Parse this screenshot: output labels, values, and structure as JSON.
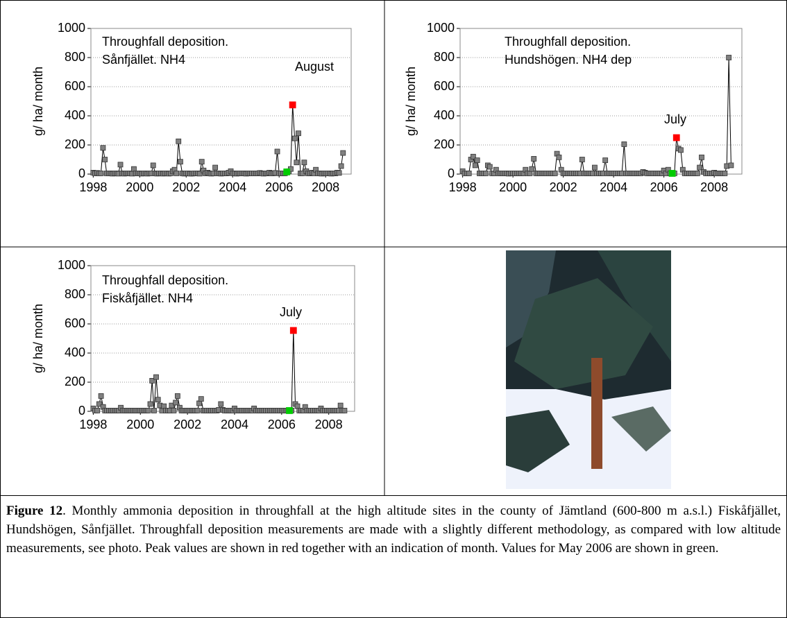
{
  "chart_data": [
    {
      "type": "line",
      "title": [
        "Throughfall deposition.",
        "Sånfjället. NH4"
      ],
      "y_label": "g/ ha/ month",
      "x": [
        1998,
        1998.08,
        1998.17,
        1998.25,
        1998.33,
        1998.42,
        1998.5,
        1998.58,
        1998.67,
        1998.75,
        1998.83,
        1998.92,
        1999,
        1999.08,
        1999.17,
        1999.25,
        1999.33,
        1999.42,
        1999.5,
        1999.58,
        1999.67,
        1999.75,
        1999.83,
        1999.92,
        2000,
        2000.08,
        2000.17,
        2000.25,
        2000.33,
        2000.42,
        2000.5,
        2000.58,
        2000.67,
        2000.75,
        2000.83,
        2000.92,
        2001,
        2001.08,
        2001.17,
        2001.25,
        2001.33,
        2001.42,
        2001.5,
        2001.58,
        2001.67,
        2001.75,
        2001.83,
        2001.92,
        2002,
        2002.08,
        2002.17,
        2002.25,
        2002.33,
        2002.42,
        2002.5,
        2002.58,
        2002.67,
        2002.75,
        2002.83,
        2002.92,
        2003,
        2003.08,
        2003.17,
        2003.25,
        2003.33,
        2003.42,
        2003.5,
        2003.58,
        2003.67,
        2003.75,
        2003.83,
        2003.92,
        2004,
        2004.08,
        2004.17,
        2004.25,
        2004.33,
        2004.42,
        2004.5,
        2004.58,
        2004.67,
        2004.75,
        2004.83,
        2004.92,
        2005,
        2005.08,
        2005.17,
        2005.25,
        2005.33,
        2005.42,
        2005.5,
        2005.58,
        2005.67,
        2005.75,
        2005.83,
        2005.92,
        2006,
        2006.08,
        2006.17,
        2006.25,
        2006.33,
        2006.42,
        2006.5,
        2006.58,
        2006.67,
        2006.75,
        2006.83,
        2006.92,
        2007,
        2007.08,
        2007.17,
        2007.25,
        2007.33,
        2007.42,
        2007.5,
        2007.58,
        2007.67,
        2007.75,
        2007.83,
        2007.92,
        2008,
        2008.08,
        2008.17,
        2008.25,
        2008.33,
        2008.42,
        2008.5,
        2008.58,
        2008.67,
        2008.75
      ],
      "series": [
        {
          "color": "#808080",
          "line_color": "#000000",
          "point_colors": [
            {
              "index": 100,
              "color": "#00cc00"
            },
            {
              "index": 103,
              "color": "#ff0000"
            }
          ],
          "values": [
            10,
            5,
            8,
            5,
            5,
            180,
            100,
            5,
            5,
            5,
            3,
            5,
            5,
            3,
            65,
            5,
            3,
            5,
            5,
            5,
            3,
            35,
            5,
            5,
            5,
            3,
            5,
            5,
            3,
            5,
            5,
            60,
            5,
            3,
            5,
            5,
            3,
            5,
            5,
            3,
            5,
            20,
            30,
            5,
            225,
            85,
            5,
            3,
            5,
            5,
            3,
            3,
            5,
            5,
            5,
            3,
            85,
            25,
            5,
            10,
            5,
            3,
            5,
            45,
            5,
            5,
            3,
            5,
            5,
            5,
            10,
            20,
            5,
            5,
            3,
            5,
            5,
            5,
            5,
            3,
            5,
            5,
            5,
            5,
            5,
            5,
            8,
            5,
            3,
            5,
            5,
            10,
            5,
            5,
            8,
            155,
            5,
            5,
            5,
            5,
            15,
            20,
            35,
            475,
            245,
            80,
            280,
            5,
            5,
            80,
            20,
            5,
            5,
            10,
            5,
            30,
            5,
            5,
            3,
            5,
            5,
            5,
            5,
            3,
            5,
            5,
            10,
            8,
            55,
            145
          ]
        }
      ],
      "annotations": [
        {
          "text": "August"
        }
      ],
      "xlim": [
        1997.9,
        2009.1
      ],
      "xticks": [
        1998,
        2000,
        2002,
        2004,
        2006,
        2008
      ],
      "ylim": [
        0,
        1000
      ],
      "yticks": [
        0,
        200,
        400,
        600,
        800,
        1000
      ],
      "grid": true
    },
    {
      "type": "line",
      "title": [
        "Throughfall deposition.",
        "Hundshögen. NH4 dep"
      ],
      "y_label": "g/ ha/ month",
      "x": [
        1998,
        1998.08,
        1998.17,
        1998.25,
        1998.33,
        1998.42,
        1998.5,
        1998.58,
        1998.67,
        1998.75,
        1998.83,
        1998.92,
        1999,
        1999.08,
        1999.17,
        1999.25,
        1999.33,
        1999.42,
        1999.5,
        1999.58,
        1999.67,
        1999.75,
        1999.83,
        1999.92,
        2000,
        2000.08,
        2000.17,
        2000.25,
        2000.33,
        2000.42,
        2000.5,
        2000.58,
        2000.67,
        2000.75,
        2000.83,
        2000.92,
        2001,
        2001.08,
        2001.17,
        2001.25,
        2001.33,
        2001.42,
        2001.5,
        2001.58,
        2001.67,
        2001.75,
        2001.83,
        2001.92,
        2002,
        2002.08,
        2002.17,
        2002.25,
        2002.33,
        2002.42,
        2002.5,
        2002.58,
        2002.67,
        2002.75,
        2002.83,
        2002.92,
        2003,
        2003.08,
        2003.17,
        2003.25,
        2003.33,
        2003.42,
        2003.5,
        2003.58,
        2003.67,
        2003.75,
        2003.83,
        2003.92,
        2004,
        2004.08,
        2004.17,
        2004.25,
        2004.33,
        2004.42,
        2004.5,
        2004.58,
        2004.67,
        2004.75,
        2004.83,
        2004.92,
        2005,
        2005.08,
        2005.17,
        2005.25,
        2005.33,
        2005.42,
        2005.5,
        2005.58,
        2005.67,
        2005.75,
        2005.83,
        2005.92,
        2006,
        2006.08,
        2006.17,
        2006.25,
        2006.33,
        2006.42,
        2006.5,
        2006.58,
        2006.67,
        2006.75,
        2006.83,
        2006.92,
        2007,
        2007.08,
        2007.17,
        2007.25,
        2007.33,
        2007.42,
        2007.5,
        2007.58,
        2007.67,
        2007.75,
        2007.83,
        2007.92,
        2008,
        2008.08,
        2008.17,
        2008.25,
        2008.33,
        2008.42,
        2008.5,
        2008.58,
        2008.67
      ],
      "series": [
        {
          "color": "#808080",
          "line_color": "#000000",
          "point_colors": [
            {
              "index": 100,
              "color": "#00cc00"
            },
            {
              "index": 102,
              "color": "#ff0000"
            }
          ],
          "values": [
            20,
            5,
            5,
            5,
            100,
            120,
            60,
            95,
            5,
            5,
            5,
            5,
            60,
            50,
            5,
            5,
            30,
            5,
            5,
            5,
            5,
            5,
            3,
            5,
            5,
            5,
            5,
            5,
            5,
            5,
            30,
            5,
            5,
            35,
            105,
            5,
            5,
            5,
            5,
            5,
            5,
            5,
            5,
            5,
            5,
            140,
            115,
            30,
            5,
            5,
            5,
            5,
            5,
            5,
            5,
            5,
            5,
            100,
            5,
            5,
            5,
            5,
            5,
            45,
            5,
            5,
            5,
            5,
            95,
            5,
            5,
            5,
            5,
            5,
            5,
            5,
            5,
            205,
            5,
            5,
            5,
            5,
            5,
            5,
            5,
            5,
            15,
            10,
            5,
            5,
            5,
            5,
            5,
            5,
            5,
            5,
            25,
            5,
            30,
            5,
            5,
            5,
            250,
            175,
            165,
            30,
            5,
            5,
            5,
            5,
            5,
            5,
            5,
            45,
            115,
            15,
            5,
            5,
            5,
            5,
            10,
            5,
            5,
            5,
            5,
            5,
            55,
            800,
            60
          ]
        }
      ],
      "annotations": [
        {
          "text": "July"
        }
      ],
      "xlim": [
        1997.9,
        2009.1
      ],
      "xticks": [
        1998,
        2000,
        2002,
        2004,
        2006,
        2008
      ],
      "ylim": [
        0,
        1000
      ],
      "yticks": [
        0,
        200,
        400,
        600,
        800,
        1000
      ],
      "grid": true
    },
    {
      "type": "line",
      "title": [
        "Throughfall deposition.",
        "Fiskåfjället. NH4"
      ],
      "y_label": "g/ ha/ month",
      "x": [
        1998,
        1998.08,
        1998.17,
        1998.25,
        1998.33,
        1998.42,
        1998.5,
        1998.58,
        1998.67,
        1998.75,
        1998.83,
        1998.92,
        1999,
        1999.08,
        1999.17,
        1999.25,
        1999.33,
        1999.42,
        1999.5,
        1999.58,
        1999.67,
        1999.75,
        1999.83,
        1999.92,
        2000,
        2000.08,
        2000.17,
        2000.25,
        2000.33,
        2000.42,
        2000.5,
        2000.58,
        2000.67,
        2000.75,
        2000.83,
        2000.92,
        2001,
        2001.08,
        2001.17,
        2001.25,
        2001.33,
        2001.42,
        2001.5,
        2001.58,
        2001.67,
        2001.75,
        2001.83,
        2001.92,
        2002,
        2002.08,
        2002.17,
        2002.25,
        2002.33,
        2002.42,
        2002.5,
        2002.58,
        2002.67,
        2002.75,
        2002.83,
        2002.92,
        2003,
        2003.08,
        2003.17,
        2003.25,
        2003.33,
        2003.42,
        2003.5,
        2003.58,
        2003.67,
        2003.75,
        2003.83,
        2003.92,
        2004,
        2004.08,
        2004.17,
        2004.25,
        2004.33,
        2004.42,
        2004.5,
        2004.58,
        2004.67,
        2004.75,
        2004.83,
        2004.92,
        2005,
        2005.08,
        2005.17,
        2005.25,
        2005.33,
        2005.42,
        2005.5,
        2005.58,
        2005.67,
        2005.75,
        2005.83,
        2005.92,
        2006,
        2006.08,
        2006.17,
        2006.25,
        2006.33,
        2006.42,
        2006.5,
        2006.58,
        2006.67,
        2006.75,
        2006.83,
        2006.92,
        2007,
        2007.08,
        2007.17,
        2007.25,
        2007.33,
        2007.42,
        2007.5,
        2007.58,
        2007.67,
        2007.75,
        2007.83,
        2007.92,
        2008,
        2008.08,
        2008.17,
        2008.25,
        2008.33,
        2008.42,
        2008.5,
        2008.58,
        2008.67
      ],
      "series": [
        {
          "color": "#808080",
          "line_color": "#000000",
          "point_colors": [
            {
              "index": 100,
              "color": "#00cc00"
            },
            {
              "index": 102,
              "color": "#ff0000"
            }
          ],
          "values": [
            20,
            5,
            5,
            50,
            105,
            30,
            5,
            5,
            5,
            5,
            5,
            5,
            5,
            5,
            25,
            5,
            5,
            5,
            5,
            5,
            5,
            5,
            5,
            5,
            5,
            5,
            5,
            5,
            5,
            50,
            210,
            5,
            235,
            80,
            40,
            5,
            35,
            5,
            5,
            5,
            40,
            5,
            60,
            105,
            25,
            5,
            5,
            5,
            5,
            5,
            5,
            5,
            5,
            5,
            55,
            85,
            5,
            5,
            5,
            5,
            5,
            5,
            5,
            5,
            10,
            50,
            10,
            5,
            5,
            5,
            5,
            5,
            20,
            5,
            5,
            5,
            5,
            5,
            5,
            5,
            5,
            5,
            20,
            5,
            5,
            5,
            5,
            5,
            5,
            5,
            5,
            5,
            5,
            5,
            5,
            5,
            5,
            5,
            5,
            5,
            5,
            5,
            555,
            50,
            35,
            5,
            5,
            5,
            30,
            5,
            5,
            5,
            5,
            5,
            5,
            5,
            20,
            5,
            5,
            5,
            5,
            5,
            5,
            5,
            5,
            5,
            40,
            5,
            5
          ]
        }
      ],
      "annotations": [
        {
          "text": "July"
        }
      ],
      "xlim": [
        1997.9,
        2009.1
      ],
      "xticks": [
        1998,
        2000,
        2002,
        2004,
        2006,
        2008
      ],
      "ylim": [
        0,
        1000
      ],
      "yticks": [
        0,
        200,
        400,
        600,
        800,
        1000
      ],
      "grid": true
    }
  ],
  "caption": {
    "label": "Figure 12",
    "text": ". Monthly ammonia deposition in throughfall at the high altitude sites in the county of Jämtland (600-800 m a.s.l.) Fiskåfjället, Hundshögen, Sånfjället. Throughfall deposition measurements are made with a slightly different methodology, as compared with low altitude measurements, see photo. Peak values are shown in red together with an indication of month. Values for May 2006 are shown in green."
  }
}
